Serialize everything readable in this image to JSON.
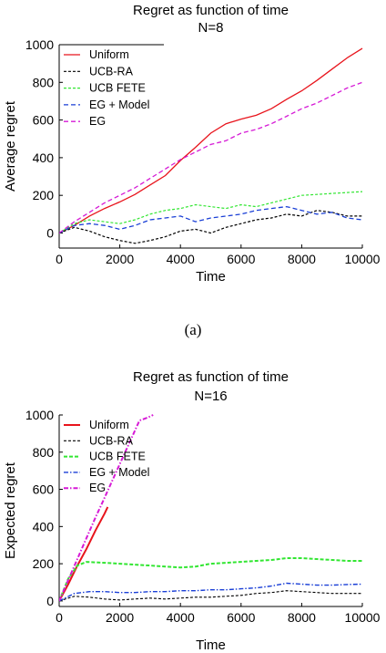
{
  "caption": "(a)",
  "chart_data": [
    {
      "type": "line",
      "title": "Regret as function of time",
      "subtitle": "N=8",
      "xlabel": "Time",
      "ylabel": "Average regret",
      "xlim": [
        0,
        10000
      ],
      "ylim": [
        -80,
        1000
      ],
      "xticks": [
        0,
        2000,
        4000,
        6000,
        8000,
        10000
      ],
      "yticks": [
        0,
        200,
        400,
        600,
        800,
        1000
      ],
      "grid": false,
      "legend": "top-left",
      "series": [
        {
          "name": "Uniform",
          "color": "#e8141c",
          "dash": "",
          "width": 1.3,
          "x": [
            0,
            500,
            1000,
            1500,
            2000,
            2500,
            3000,
            3500,
            4000,
            4500,
            5000,
            5500,
            6000,
            6500,
            7000,
            7500,
            8000,
            8500,
            9000,
            9500,
            10000
          ],
          "y": [
            0,
            40,
            90,
            130,
            165,
            205,
            255,
            305,
            385,
            455,
            530,
            580,
            605,
            625,
            660,
            710,
            755,
            810,
            870,
            930,
            980
          ]
        },
        {
          "name": "UCB-RA",
          "color": "#000000",
          "dash": "3,2",
          "width": 1.2,
          "x": [
            0,
            500,
            1000,
            1500,
            2000,
            2500,
            3000,
            3500,
            4000,
            4500,
            5000,
            5500,
            6000,
            6500,
            7000,
            7500,
            8000,
            8500,
            9000,
            9500,
            10000
          ],
          "y": [
            0,
            30,
            10,
            -20,
            -40,
            -55,
            -40,
            -20,
            10,
            20,
            0,
            30,
            50,
            70,
            80,
            100,
            90,
            120,
            110,
            90,
            90
          ]
        },
        {
          "name": "UCB FETE",
          "color": "#32e632",
          "dash": "3,2",
          "width": 1.2,
          "x": [
            0,
            500,
            1000,
            1500,
            2000,
            2500,
            3000,
            3500,
            4000,
            4500,
            5000,
            5500,
            6000,
            6500,
            7000,
            7500,
            8000,
            8500,
            9000,
            9500,
            10000
          ],
          "y": [
            0,
            50,
            70,
            60,
            50,
            70,
            100,
            120,
            130,
            150,
            140,
            130,
            150,
            140,
            160,
            180,
            200,
            205,
            210,
            215,
            220
          ]
        },
        {
          "name": "EG + Model",
          "color": "#1a3fd6",
          "dash": "5,3",
          "width": 1.3,
          "x": [
            0,
            500,
            1000,
            1500,
            2000,
            2500,
            3000,
            3500,
            4000,
            4500,
            5000,
            5500,
            6000,
            6500,
            7000,
            7500,
            8000,
            8500,
            9000,
            9500,
            10000
          ],
          "y": [
            0,
            40,
            50,
            40,
            20,
            40,
            70,
            80,
            90,
            60,
            80,
            90,
            100,
            120,
            130,
            140,
            120,
            100,
            110,
            80,
            70
          ]
        },
        {
          "name": "EG",
          "color": "#d61ad6",
          "dash": "5,3",
          "width": 1.3,
          "x": [
            0,
            500,
            1000,
            1500,
            2000,
            2500,
            3000,
            3500,
            4000,
            4500,
            5000,
            5500,
            6000,
            6500,
            7000,
            7500,
            8000,
            8500,
            9000,
            9500,
            10000
          ],
          "y": [
            0,
            60,
            110,
            160,
            200,
            240,
            290,
            340,
            390,
            430,
            470,
            490,
            530,
            550,
            580,
            620,
            660,
            690,
            730,
            770,
            800
          ]
        }
      ]
    },
    {
      "type": "line",
      "title": "Regret as function of time",
      "subtitle": "N=16",
      "xlabel": "Time",
      "ylabel": "Expected regret",
      "xlim": [
        0,
        10000
      ],
      "ylim": [
        -30,
        1000
      ],
      "xticks": [
        0,
        2000,
        4000,
        6000,
        8000,
        10000
      ],
      "yticks": [
        0,
        200,
        400,
        600,
        800,
        1000
      ],
      "grid": false,
      "legend": "top-left",
      "series": [
        {
          "name": "Uniform",
          "color": "#e8141c",
          "dash": "",
          "width": 2,
          "x": [
            0,
            300,
            600,
            900,
            1200,
            1500,
            1600
          ],
          "y": [
            0,
            90,
            190,
            280,
            380,
            470,
            505
          ]
        },
        {
          "name": "UCB-RA",
          "color": "#000000",
          "dash": "3,2",
          "width": 1.1,
          "x": [
            0,
            500,
            1000,
            1500,
            2000,
            2500,
            3000,
            3500,
            4000,
            4500,
            5000,
            5500,
            6000,
            6500,
            7000,
            7500,
            8000,
            8500,
            9000,
            9500,
            10000
          ],
          "y": [
            0,
            25,
            20,
            10,
            5,
            10,
            15,
            10,
            15,
            20,
            20,
            25,
            30,
            40,
            45,
            55,
            50,
            45,
            40,
            40,
            40
          ]
        },
        {
          "name": "UCB FETE",
          "color": "#32e632",
          "dash": "4,2",
          "width": 2,
          "x": [
            0,
            300,
            600,
            900,
            1500,
            2000,
            2500,
            3000,
            3500,
            4000,
            4500,
            5000,
            5500,
            6000,
            6500,
            7000,
            7500,
            8000,
            8500,
            9000,
            9500,
            10000
          ],
          "y": [
            0,
            120,
            190,
            210,
            205,
            200,
            195,
            190,
            185,
            180,
            185,
            200,
            205,
            210,
            215,
            220,
            230,
            230,
            225,
            220,
            215,
            215
          ]
        },
        {
          "name": "EG + Model",
          "color": "#1a3fd6",
          "dash": "5,2,1.5,2",
          "width": 1.4,
          "x": [
            0,
            500,
            1000,
            1500,
            2000,
            2500,
            3000,
            3500,
            4000,
            4500,
            5000,
            5500,
            6000,
            6500,
            7000,
            7500,
            8000,
            8500,
            9000,
            9500,
            10000
          ],
          "y": [
            0,
            40,
            50,
            50,
            45,
            45,
            50,
            50,
            55,
            55,
            60,
            60,
            65,
            70,
            80,
            95,
            90,
            85,
            85,
            88,
            90
          ]
        },
        {
          "name": "EG",
          "color": "#d61ad6",
          "dash": "5,2,1.5,2",
          "width": 2,
          "x": [
            0,
            400,
            800,
            1200,
            1400,
            2650,
            2900,
            3100
          ],
          "y": [
            0,
            150,
            300,
            450,
            520,
            970,
            985,
            1000
          ]
        }
      ]
    }
  ]
}
